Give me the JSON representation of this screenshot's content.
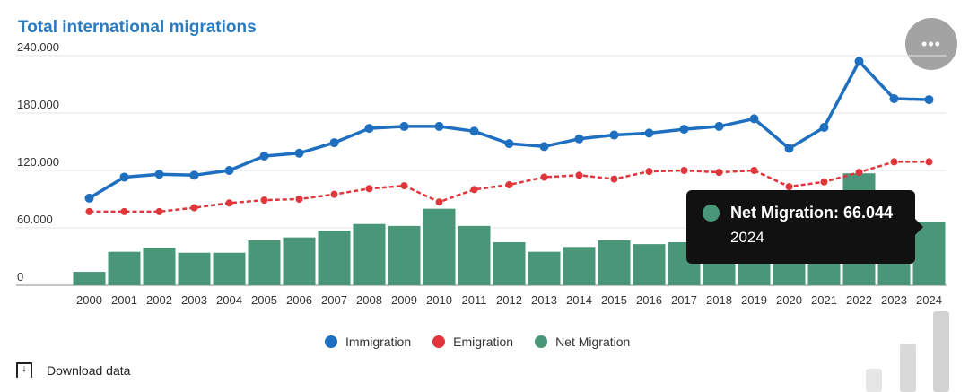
{
  "chart_data": {
    "type": "bar+line",
    "title": "Total international migrations",
    "categories": [
      "2000",
      "2001",
      "2002",
      "2003",
      "2004",
      "2005",
      "2006",
      "2007",
      "2008",
      "2009",
      "2010",
      "2011",
      "2012",
      "2013",
      "2014",
      "2015",
      "2016",
      "2017",
      "2018",
      "2019",
      "2020",
      "2021",
      "2022",
      "2023",
      "2024"
    ],
    "y_ticks": [
      "0",
      "60.000",
      "120.000",
      "180.000",
      "240.000"
    ],
    "ylim": [
      0,
      240000
    ],
    "grid": true,
    "legend_position": "bottom",
    "series": [
      {
        "name": "Immigration",
        "type": "line",
        "color": "#1f6fc1",
        "style": "solid",
        "values": [
          91000,
          113000,
          116000,
          115000,
          120000,
          135000,
          138000,
          149000,
          164000,
          166000,
          166000,
          161000,
          148000,
          145000,
          153000,
          157000,
          159000,
          163000,
          166000,
          174000,
          143000,
          165000,
          234000,
          195000,
          194000
        ]
      },
      {
        "name": "Emigration",
        "type": "line",
        "color": "#e0353a",
        "style": "dashed",
        "values": [
          77000,
          77000,
          77000,
          81000,
          86000,
          89000,
          90000,
          95000,
          101000,
          104000,
          87000,
          100000,
          105000,
          113000,
          115000,
          111000,
          119000,
          120000,
          118000,
          120000,
          103000,
          108000,
          118000,
          129000,
          129000
        ]
      },
      {
        "name": "Net Migration",
        "type": "bar",
        "color": "#4a9678",
        "values": [
          14000,
          35000,
          39000,
          34000,
          34000,
          47000,
          50000,
          57000,
          64000,
          62000,
          80000,
          62000,
          45000,
          35000,
          40000,
          47000,
          43000,
          45000,
          48000,
          54000,
          39000,
          56000,
          117000,
          66000,
          66044
        ]
      }
    ]
  },
  "tooltip": {
    "label": "Net Migration: 66.044",
    "year": "2024",
    "color": "#4a9678"
  },
  "menu": {
    "label": "•••"
  },
  "download": {
    "label": "Download data"
  }
}
